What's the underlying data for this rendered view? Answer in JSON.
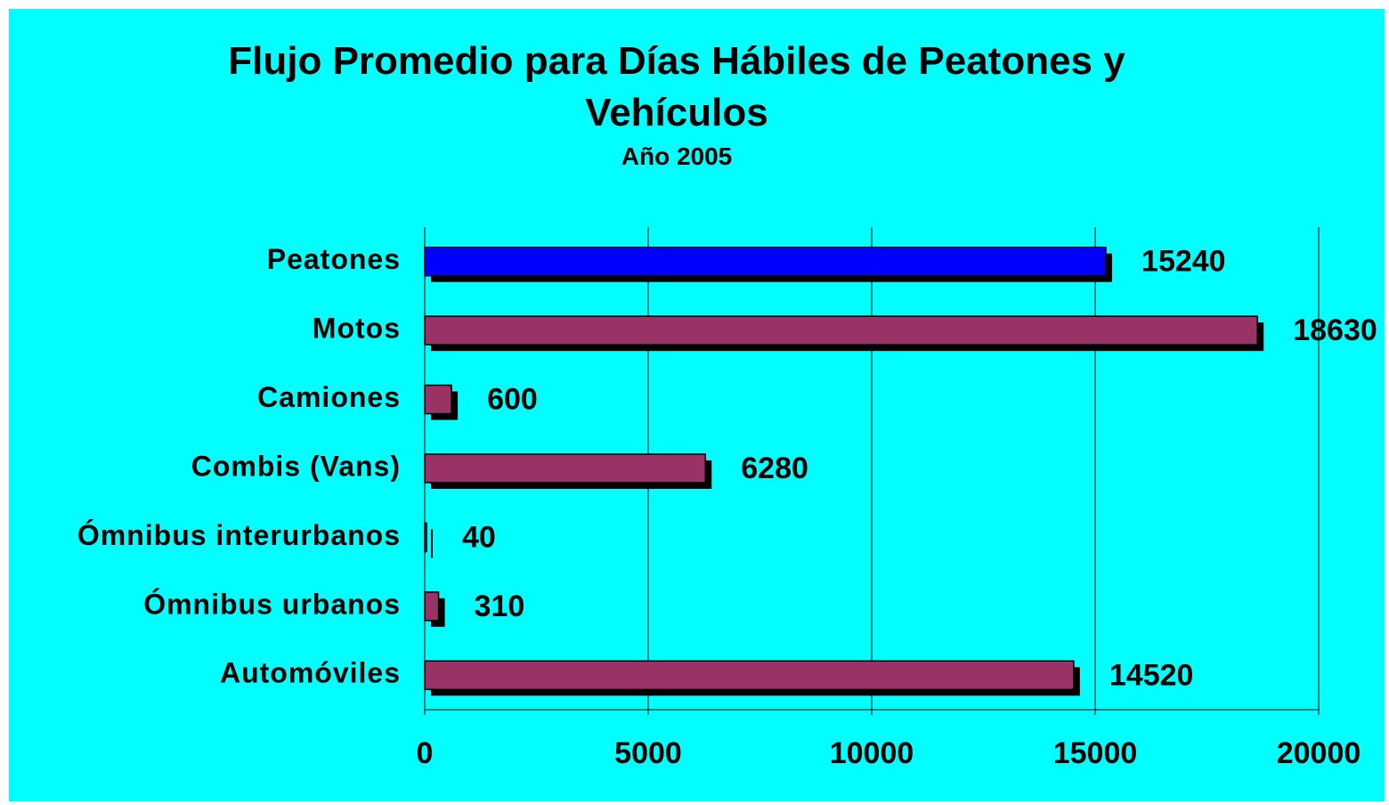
{
  "chart_data": {
    "type": "barh",
    "title": "Flujo Promedio para Días Hábiles de Peatones y Vehículos",
    "subtitle": "Año 2005",
    "categories": [
      "Peatones",
      "Motos",
      "Camiones",
      "Combis (Vans)",
      "Ómnibus interurbanos",
      "Ómnibus urbanos",
      "Automóviles"
    ],
    "values": [
      15240,
      18630,
      600,
      6280,
      40,
      310,
      14520
    ],
    "colors": [
      "#0000ff",
      "#993366",
      "#993366",
      "#993366",
      "#993366",
      "#993366",
      "#993366"
    ],
    "xlim": [
      0,
      20000
    ],
    "xticks": [
      0,
      5000,
      10000,
      15000,
      20000
    ],
    "grid": true
  }
}
